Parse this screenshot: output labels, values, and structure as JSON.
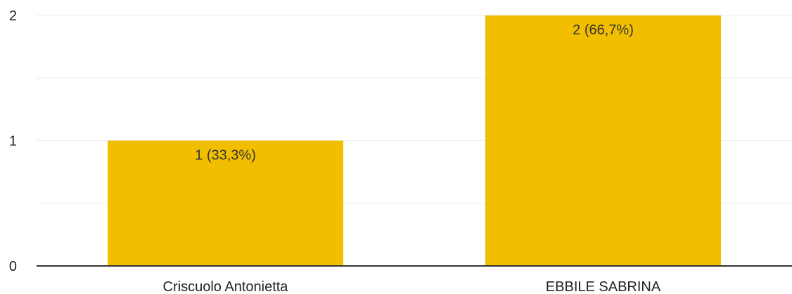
{
  "chart_data": {
    "type": "bar",
    "categories": [
      "Criscuolo Antonietta",
      "EBBILE SABRINA"
    ],
    "values": [
      1,
      2
    ],
    "data_labels": [
      "1 (33,3%)",
      "2 (66,7%)"
    ],
    "ylim": [
      0,
      2
    ],
    "y_ticks": [
      "0",
      "1",
      "2"
    ],
    "grid": true,
    "colors": {
      "bar": "#f2bf00",
      "gridline": "#ebebeb",
      "axis": "#333333"
    }
  }
}
